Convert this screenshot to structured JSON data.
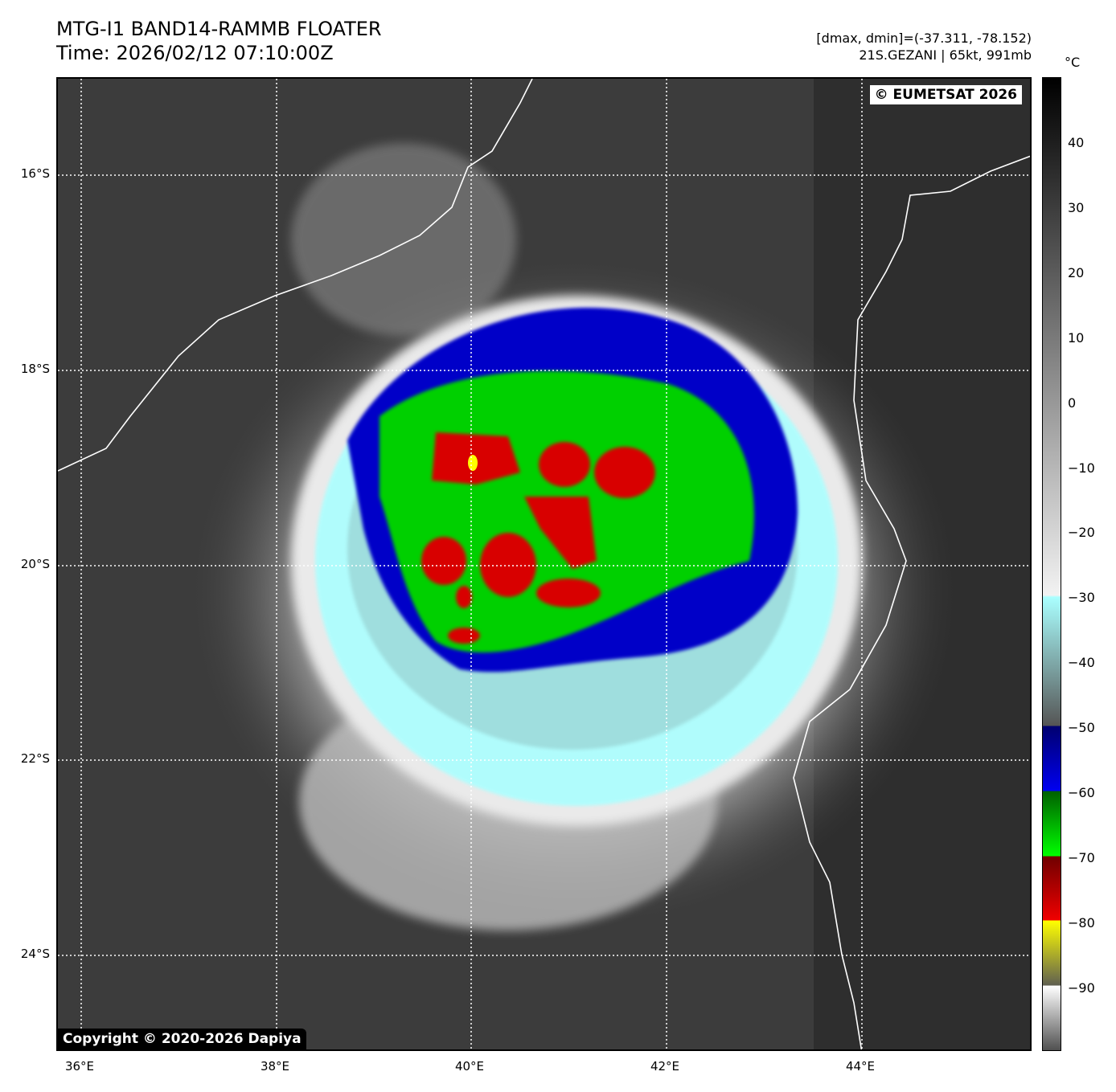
{
  "header": {
    "title": "MTG-I1 BAND14-RAMMB FLOATER",
    "time": "Time: 2026/02/12 07:10:00Z",
    "dminmax": "[dmax, dmin]=(-37.311, -78.152)",
    "storm": "21S.GEZANI | 65kt, 991mb"
  },
  "map": {
    "eumetsat": "© EUMETSAT 2026",
    "copyright": "Copyright © 2020-2026 Dapiya",
    "lat_labels": [
      "16°S",
      "18°S",
      "20°S",
      "22°S",
      "24°S"
    ],
    "lon_labels": [
      "36°E",
      "38°E",
      "40°E",
      "42°E",
      "44°E"
    ]
  },
  "colorbar": {
    "unit": "°C",
    "ticks": [
      "40",
      "30",
      "20",
      "10",
      "0",
      "−10",
      "−20",
      "−30",
      "−40",
      "−50",
      "−60",
      "−70",
      "−80",
      "−90"
    ],
    "colors": {
      "cold_cyan": "#aaffff",
      "blue": "#0000f0",
      "green": "#00ff00",
      "red": "#f00000",
      "yellow": "#ffff00"
    }
  }
}
